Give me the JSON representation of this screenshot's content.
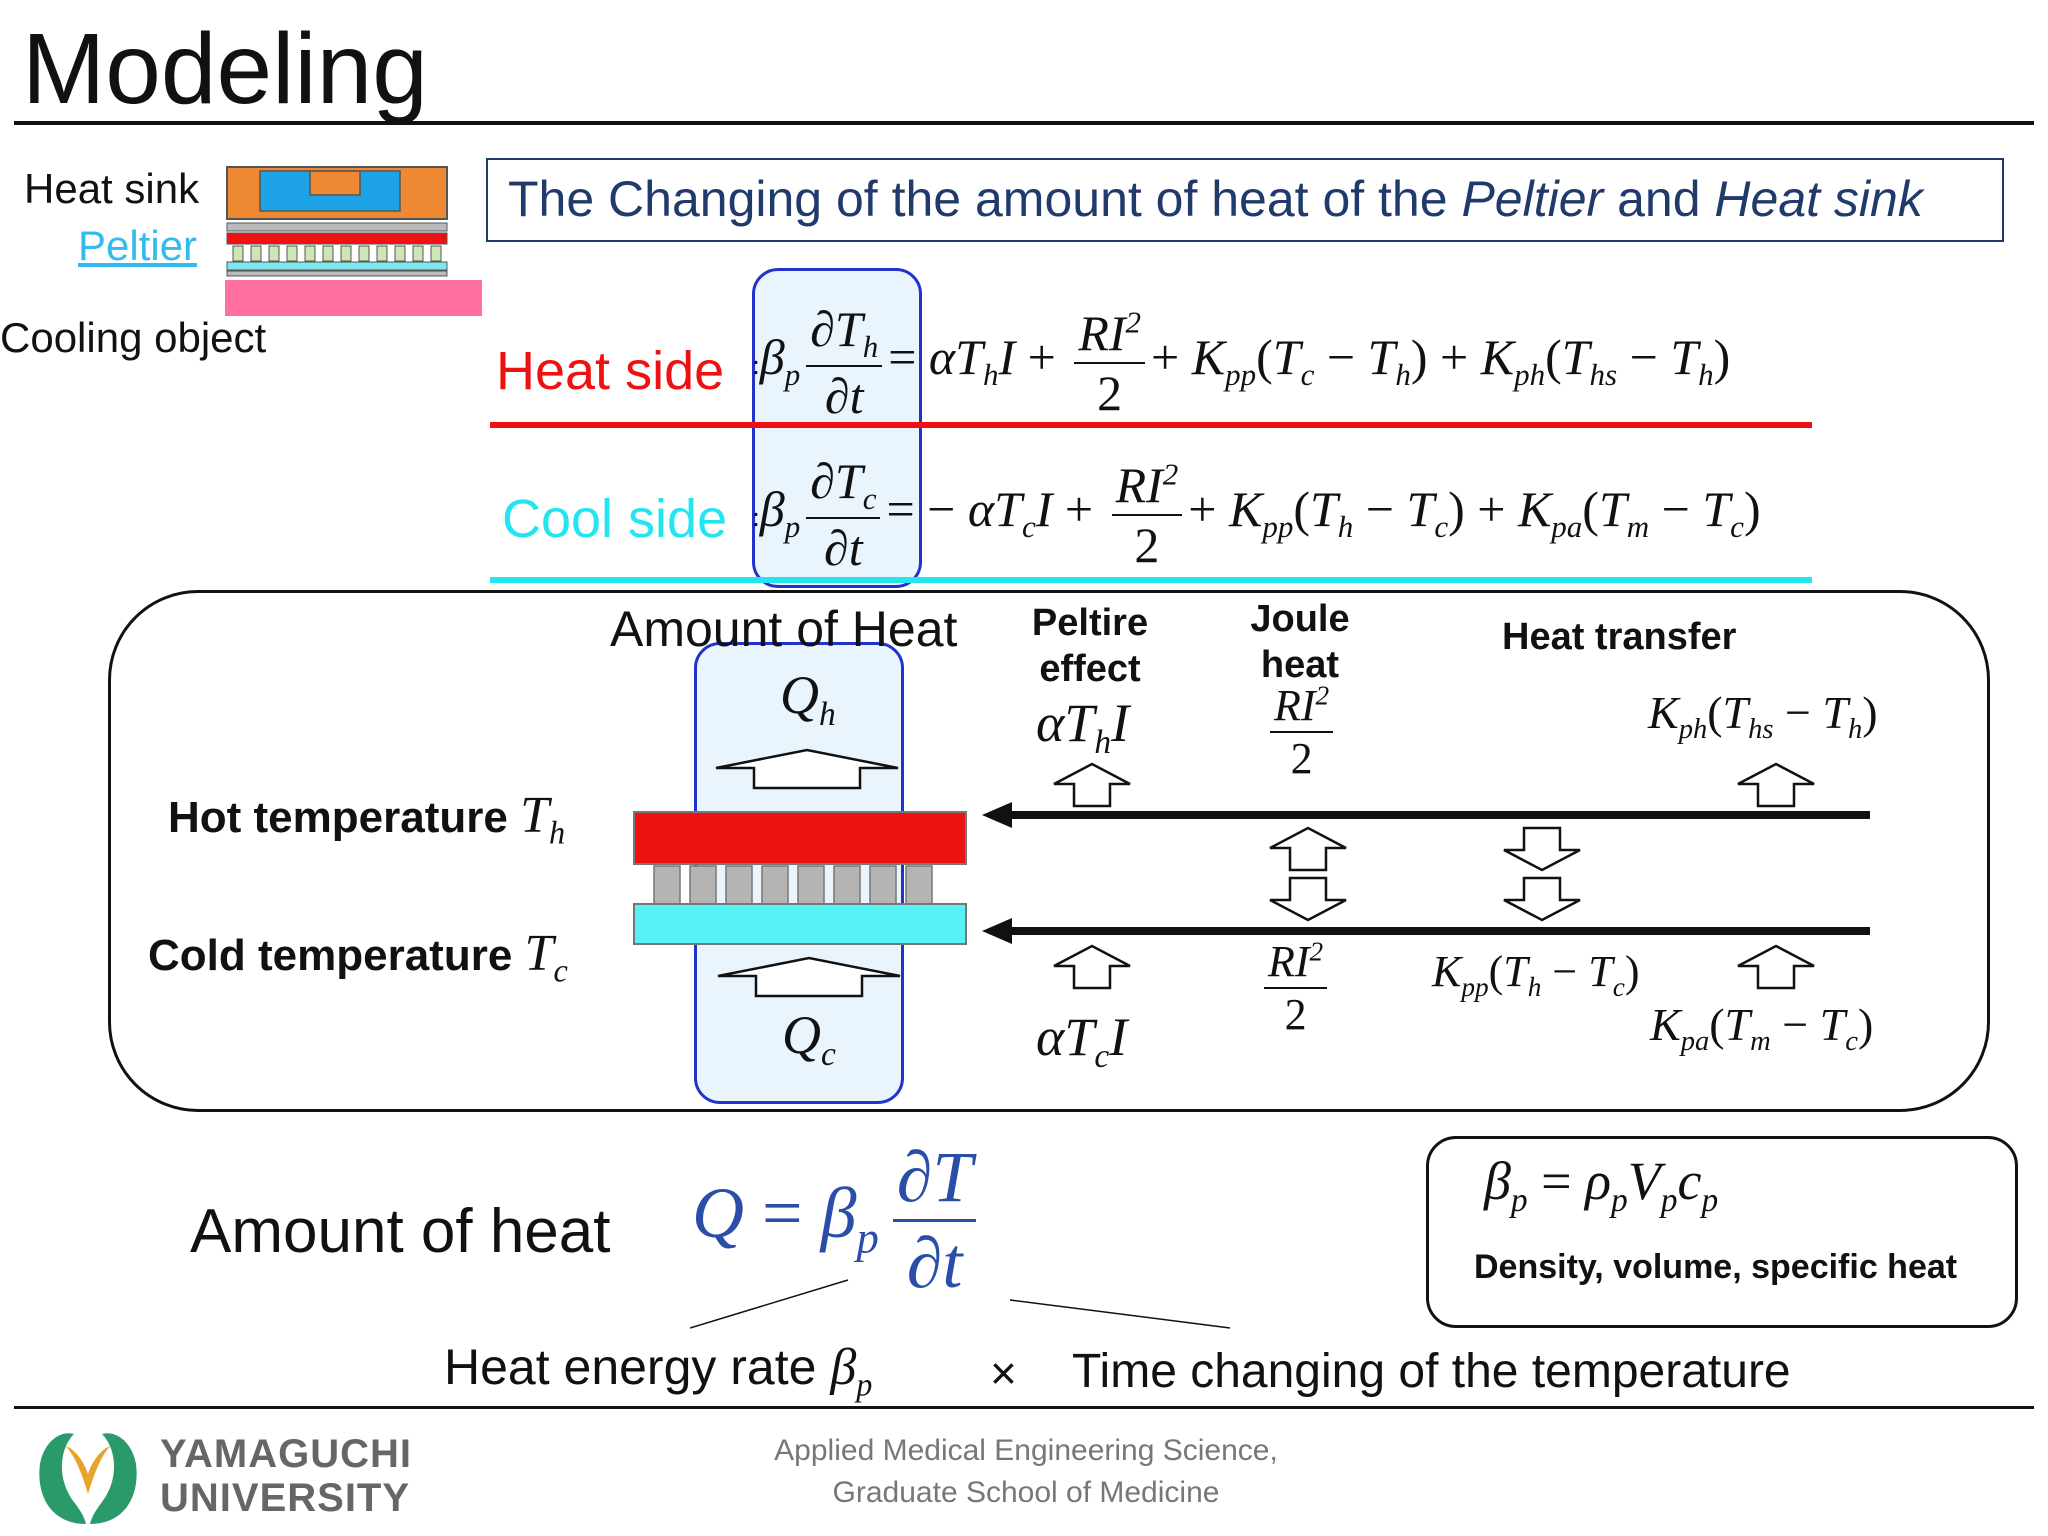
{
  "slide": {
    "title": "Modeling",
    "legend": {
      "heat_sink": "Heat sink",
      "peltier": "Peltier",
      "cooling_object": "Cooling object"
    },
    "banner": {
      "text_1": "The Changing of the amount of heat of the ",
      "peltier": "Peltier",
      "text_2": " and ",
      "heat_sink": "Heat sink"
    },
    "equations": {
      "heat_side_label": "Heat side",
      "cool_side_label": "Cool side"
    },
    "diagram": {
      "amount_of_heat": "Amount of Heat",
      "peltier_effect": "Peltire\neffect",
      "joule_heat": "Joule\nheat",
      "heat_transfer": "Heat transfer",
      "hot_temperature": "Hot temperature",
      "cold_temperature": "Cold temperature"
    },
    "bottom": {
      "amount_of_heat": "Amount of heat",
      "heat_energy_rate": "Heat energy rate",
      "times": "×",
      "time_changing": "Time changing of the temperature",
      "density_note": "Density, volume, specific heat"
    },
    "footer": {
      "university_line1": "YAMAGUCHI",
      "university_line2": "UNIVERSITY",
      "dept_line1": "Applied Medical Engineering Science,",
      "dept_line2": "Graduate School of Medicine"
    }
  },
  "colors": {
    "heat_red": "#ee1111",
    "cool_cyan": "#22e5ef",
    "navy_text": "#1f3a6b",
    "blue_highlight": "#2233cc",
    "peltier_link": "#33bbee",
    "heat_sink_orange": "#ee8833",
    "heat_sink_blue": "#1ea3e6",
    "cooling_pink": "#ff6fa0"
  }
}
